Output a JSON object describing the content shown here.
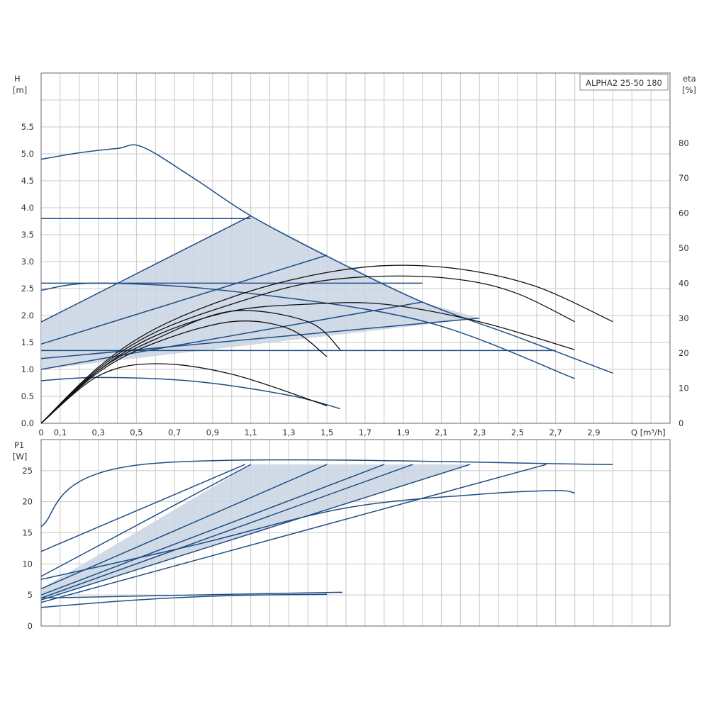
{
  "chart_data": [
    {
      "type": "line",
      "title": "ALPHA2 25-50 180",
      "ylabel": "H",
      "ylabel_unit": "[m]",
      "y2label": "eta",
      "y2label_unit": "[%]",
      "xlabel": "Q [m³/h]",
      "xlim": [
        0,
        3.3
      ],
      "ylim": [
        0,
        6.5
      ],
      "y2lim": [
        0,
        100
      ],
      "grid": true,
      "x_ticks": [
        "0",
        "0,1",
        "0,3",
        "0,5",
        "0,7",
        "0,9",
        "1,1",
        "1,3",
        "1,5",
        "1,7",
        "1,9",
        "2,1",
        "2,3",
        "2,5",
        "2,7",
        "2,9"
      ],
      "y_ticks": [
        "0.0",
        "0.5",
        "1.0",
        "1.5",
        "2.0",
        "2.5",
        "3.0",
        "3.5",
        "4.0",
        "4.5",
        "5.0",
        "5.5"
      ],
      "y2_ticks": [
        "0",
        "10",
        "20",
        "30",
        "40",
        "50",
        "60",
        "70",
        "80"
      ],
      "shaded_region_color": "#c9d3e3",
      "curve_colors": {
        "head": "#1f4e85",
        "efficiency": "#111111"
      },
      "series": [
        {
          "kind": "head",
          "points": [
            [
              0,
              4.9
            ],
            [
              0.2,
              5.02
            ],
            [
              0.4,
              5.1
            ],
            [
              0.53,
              5.13
            ],
            [
              0.8,
              4.55
            ],
            [
              1.1,
              3.85
            ],
            [
              1.5,
              3.1
            ],
            [
              2.0,
              2.25
            ],
            [
              2.5,
              1.6
            ],
            [
              3.0,
              0.93
            ]
          ]
        },
        {
          "kind": "head",
          "points": [
            [
              0,
              3.8
            ],
            [
              1.1,
              3.8
            ]
          ]
        },
        {
          "kind": "head",
          "points": [
            [
              1.1,
              3.85
            ],
            [
              0,
              1.88
            ]
          ]
        },
        {
          "kind": "head",
          "points": [
            [
              1.5,
              3.12
            ],
            [
              0,
              1.47
            ]
          ]
        },
        {
          "kind": "head",
          "points": [
            [
              0,
              2.6
            ],
            [
              2.0,
              2.6
            ]
          ]
        },
        {
          "kind": "head",
          "points": [
            [
              0,
              2.47
            ],
            [
              0.3,
              2.6
            ],
            [
              1.0,
              2.45
            ],
            [
              2.0,
              1.9
            ],
            [
              2.8,
              0.83
            ]
          ]
        },
        {
          "kind": "head",
          "points": [
            [
              0,
              1.35
            ],
            [
              2.7,
              1.35
            ]
          ]
        },
        {
          "kind": "head",
          "points": [
            [
              0,
              1.0
            ],
            [
              2.0,
              2.25
            ]
          ]
        },
        {
          "kind": "head",
          "points": [
            [
              0,
              1.2
            ],
            [
              2.3,
              1.95
            ]
          ]
        },
        {
          "kind": "head",
          "points": [
            [
              0,
              0.79
            ],
            [
              0.3,
              0.85
            ],
            [
              0.8,
              0.78
            ],
            [
              1.3,
              0.52
            ],
            [
              1.57,
              0.27
            ]
          ]
        },
        {
          "kind": "efficiency",
          "points": [
            [
              0,
              0
            ],
            [
              0.3,
              16
            ],
            [
              0.6,
              27
            ],
            [
              1.0,
              36
            ],
            [
              1.4,
              42
            ],
            [
              1.8,
              45
            ],
            [
              2.2,
              44
            ],
            [
              2.6,
              39
            ],
            [
              3.0,
              29
            ]
          ]
        },
        {
          "kind": "efficiency",
          "points": [
            [
              0,
              0
            ],
            [
              0.3,
              15.5
            ],
            [
              0.6,
              26
            ],
            [
              1.0,
              34
            ],
            [
              1.4,
              40
            ],
            [
              1.8,
              42
            ],
            [
              2.2,
              41
            ],
            [
              2.5,
              37
            ],
            [
              2.8,
              29
            ]
          ]
        },
        {
          "kind": "efficiency",
          "points": [
            [
              0,
              0
            ],
            [
              0.3,
              15
            ],
            [
              0.6,
              25
            ],
            [
              1.0,
              32
            ],
            [
              1.4,
              34
            ],
            [
              1.8,
              34
            ],
            [
              2.3,
              29
            ],
            [
              2.8,
              21
            ]
          ]
        },
        {
          "kind": "efficiency",
          "points": [
            [
              0,
              0
            ],
            [
              0.3,
              15
            ],
            [
              0.6,
              24
            ],
            [
              1.0,
              32
            ],
            [
              1.4,
              29
            ],
            [
              1.57,
              21
            ]
          ]
        },
        {
          "kind": "efficiency",
          "points": [
            [
              0,
              0
            ],
            [
              0.3,
              14.5
            ],
            [
              0.6,
              23
            ],
            [
              1.0,
              29
            ],
            [
              1.3,
              27
            ],
            [
              1.5,
              19
            ]
          ]
        },
        {
          "kind": "efficiency",
          "points": [
            [
              0,
              0
            ],
            [
              0.3,
              13.5
            ],
            [
              0.6,
              17
            ],
            [
              1.0,
              14
            ],
            [
              1.5,
              5
            ]
          ]
        }
      ],
      "shaded_regions": [
        {
          "points": [
            [
              0,
              1.88
            ],
            [
              1.1,
              3.85
            ],
            [
              1.5,
              3.12
            ],
            [
              2.0,
              2.25
            ],
            [
              2.3,
              1.95
            ],
            [
              0,
              1.0
            ]
          ]
        }
      ]
    },
    {
      "type": "line",
      "ylabel": "P1",
      "ylabel_unit": "[W]",
      "xlim": [
        0,
        3.3
      ],
      "ylim": [
        0,
        30
      ],
      "grid": true,
      "y_ticks": [
        "0",
        "5",
        "10",
        "15",
        "20",
        "25"
      ],
      "series": [
        {
          "kind": "power",
          "points": [
            [
              0,
              16
            ],
            [
              0.53,
              26
            ],
            [
              3.0,
              26
            ]
          ]
        },
        {
          "kind": "power",
          "points": [
            [
              0,
              12
            ],
            [
              1.07,
              26
            ]
          ]
        },
        {
          "kind": "power",
          "points": [
            [
              0,
              8
            ],
            [
              1.1,
              26
            ]
          ]
        },
        {
          "kind": "power",
          "points": [
            [
              0,
              6
            ],
            [
              1.5,
              26
            ]
          ]
        },
        {
          "kind": "power",
          "points": [
            [
              0,
              5
            ],
            [
              1.8,
              26
            ]
          ]
        },
        {
          "kind": "power",
          "points": [
            [
              0,
              4.5
            ],
            [
              1.95,
              26
            ]
          ]
        },
        {
          "kind": "power",
          "points": [
            [
              0,
              4.2
            ],
            [
              2.25,
              26
            ]
          ]
        },
        {
          "kind": "power",
          "points": [
            [
              0,
              3.8
            ],
            [
              2.65,
              26
            ]
          ]
        },
        {
          "kind": "power",
          "points": [
            [
              0,
              7.5
            ],
            [
              0.8,
              13
            ],
            [
              1.6,
              19
            ],
            [
              2.3,
              21.2
            ],
            [
              2.7,
              21.8
            ],
            [
              2.8,
              21.4
            ]
          ]
        },
        {
          "kind": "power",
          "points": [
            [
              0,
              4.5
            ],
            [
              0.8,
              5
            ],
            [
              1.5,
              5.4
            ],
            [
              1.57,
              5.4
            ]
          ]
        },
        {
          "kind": "power",
          "points": [
            [
              0,
              3
            ],
            [
              0.5,
              4.2
            ],
            [
              1.0,
              4.9
            ],
            [
              1.5,
              5.1
            ]
          ]
        }
      ],
      "shaded_regions": [
        {
          "points": [
            [
              0,
              6
            ],
            [
              1.1,
              26
            ],
            [
              2.25,
              26
            ],
            [
              0,
              4.2
            ]
          ]
        }
      ]
    }
  ]
}
